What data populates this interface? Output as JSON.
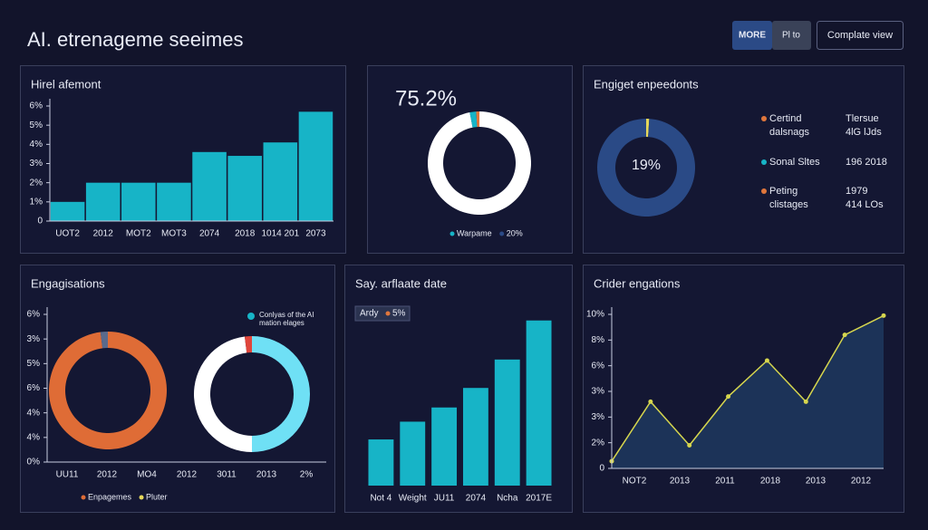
{
  "header": {
    "title": "AI. etrenageme seeimes",
    "buttons": [
      "MORE",
      "Pl to",
      "Complate view"
    ]
  },
  "panels": [
    {
      "title": "Hirel afemont",
      "chart": {
        "type": "bar",
        "color": "#17b4c7",
        "categories": [
          "UOT2",
          "2012",
          "MOT2",
          "MOT3",
          "2074",
          "2018",
          "1014 201",
          "2073"
        ],
        "values": [
          1.0,
          2.0,
          2.0,
          2.0,
          3.6,
          3.4,
          4.1,
          5.7
        ],
        "ylim": [
          0,
          6
        ],
        "yticks": [
          0,
          {
            "value": 1,
            "label": "1%"
          },
          {
            "value": 2,
            "label": "2%"
          },
          {
            "value": 3,
            "label": "3%"
          },
          {
            "value": 4,
            "label": "4%"
          },
          {
            "value": 5,
            "label": "5%"
          },
          {
            "value": 6,
            "label": "6%"
          }
        ]
      }
    },
    {
      "chart": {
        "type": "donut",
        "center_label": "75.2%",
        "donuts": [
          {
            "values": [
              97,
              2,
              1
            ],
            "colors": [
              "#ffffff",
              "#17b4c7",
              "#e0763c"
            ]
          }
        ],
        "legend": [
          {
            "name": "Warpame",
            "color": "#17b4c7"
          },
          {
            "name": "20%",
            "color": "#2b4a86"
          }
        ]
      }
    },
    {
      "title": "Engiget enpeedonts",
      "chart": {
        "type": "donut",
        "center_label": "19%",
        "donuts": [
          {
            "values": [
              1,
              99
            ],
            "colors": [
              "#e6d85a",
              "#2a4a86"
            ]
          }
        ],
        "legend": [
          {
            "name": [
              "Certind",
              "dalsnags"
            ],
            "value": [
              "Tlersue",
              "4lG lJds"
            ],
            "color": "#e0763c"
          },
          {
            "name": [
              "Sonal Sltes"
            ],
            "value": [
              "196 2018"
            ],
            "color": "#17b4c7"
          },
          {
            "name": [
              "Peting",
              "clistages"
            ],
            "value": [
              "1979",
              "414 LOs"
            ],
            "color": "#e0763c"
          }
        ]
      }
    },
    {
      "title": "Engagisations",
      "chart": {
        "type": "donut",
        "categories": [
          "UU11",
          "2012",
          "MO4",
          "2012",
          "3011",
          "2013",
          "2%"
        ],
        "ylim": [
          0,
          6
        ],
        "yticks": [
          {
            "value": 0,
            "label": "0%"
          },
          {
            "value": 1,
            "label": "4%"
          },
          {
            "value": 2,
            "label": "4%"
          },
          {
            "value": 3,
            "label": "6%"
          },
          {
            "value": 4,
            "label": "5%"
          },
          {
            "value": 5,
            "label": "3%"
          },
          {
            "value": 6,
            "label": "6%"
          }
        ],
        "donuts": [
          {
            "values": [
              98,
              2
            ],
            "colors": [
              "#df6c36",
              "#5a6a8c"
            ]
          },
          {
            "values": [
              50,
              48,
              2
            ],
            "colors": [
              "#6fe0f5",
              "#ffffff",
              "#e0463c"
            ]
          }
        ],
        "annotation": [
          "Conlyas of the AI",
          "mation elages"
        ],
        "legend": [
          {
            "name": "Enpagemes",
            "color": "#df6c36"
          },
          {
            "name": "Pluter",
            "color": "#e6d85a"
          }
        ]
      }
    },
    {
      "title": "Say. arflaate date",
      "chart": {
        "type": "bar",
        "color": "#17b4c7",
        "badge": [
          "Ardy",
          "5%"
        ],
        "categories": [
          "Not 4",
          "Weight",
          "JU11",
          "2074",
          "Ncha",
          "2017E"
        ],
        "values": [
          52,
          72,
          88,
          110,
          142,
          186
        ],
        "ylim": [
          0,
          200
        ]
      }
    },
    {
      "title": "Crider engations",
      "chart": {
        "type": "line",
        "color": "#d6d64e",
        "fill": "#1c3358",
        "categories": [
          "NOT2",
          "2013",
          "2011",
          "2018",
          "2013",
          "2012"
        ],
        "x": [
          0,
          1,
          2,
          3,
          4,
          5,
          6,
          7
        ],
        "xlim": [
          0,
          7
        ],
        "values": [
          0.28,
          2.6,
          0.9,
          2.8,
          4.2,
          2.6,
          5.2,
          5.95
        ],
        "ylim": [
          0,
          6
        ],
        "yticks": [
          0,
          {
            "value": 1,
            "label": "2%"
          },
          {
            "value": 2,
            "label": "3%"
          },
          {
            "value": 3,
            "label": "3%"
          },
          {
            "value": 4,
            "label": "6%"
          },
          {
            "value": 5,
            "label": "8%"
          },
          {
            "value": 6,
            "label": "10%"
          }
        ]
      }
    }
  ]
}
